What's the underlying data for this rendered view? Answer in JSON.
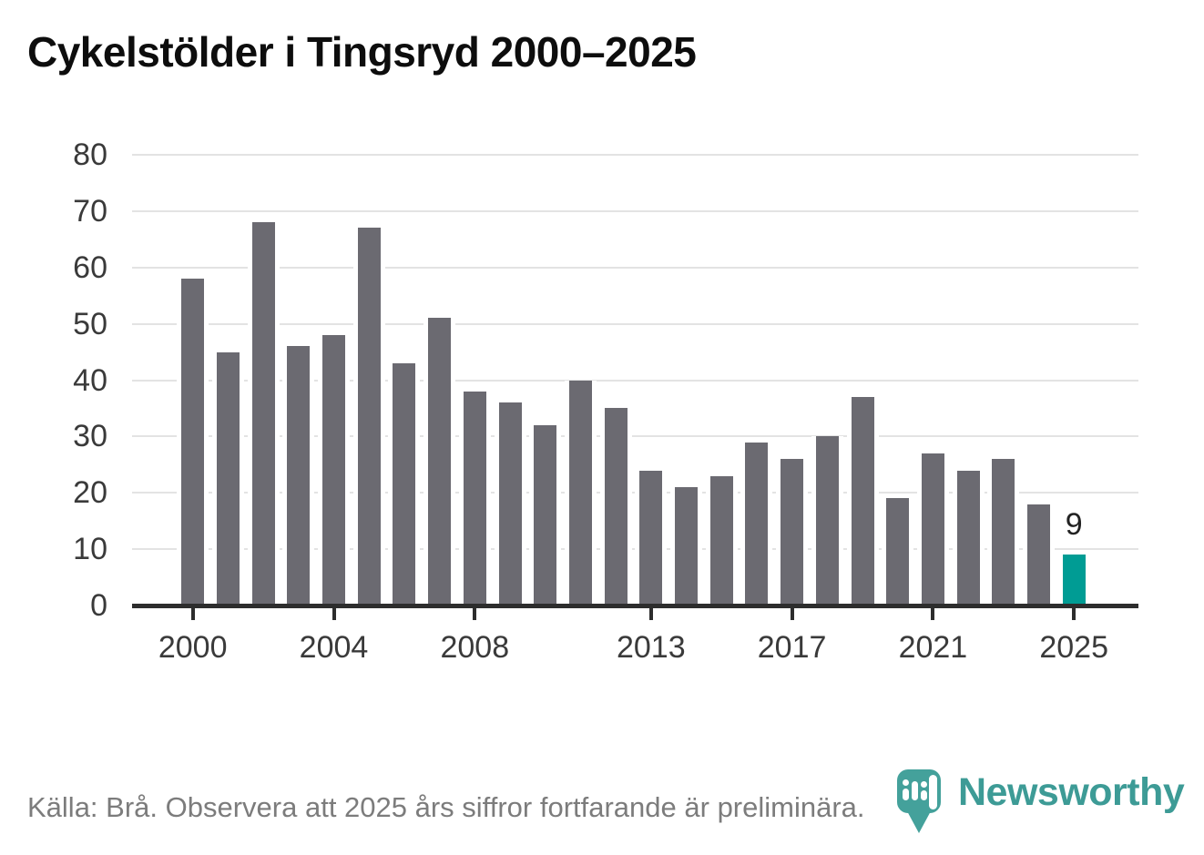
{
  "title": "Cykelstölder i Tingsryd 2000–2025",
  "chart_data": {
    "type": "bar",
    "x": [
      2000,
      2001,
      2002,
      2003,
      2004,
      2005,
      2006,
      2007,
      2008,
      2009,
      2010,
      2011,
      2012,
      2013,
      2014,
      2015,
      2016,
      2017,
      2018,
      2019,
      2020,
      2021,
      2022,
      2023,
      2024,
      2025
    ],
    "values": [
      58,
      45,
      68,
      46,
      48,
      67,
      43,
      51,
      38,
      36,
      32,
      40,
      35,
      24,
      21,
      23,
      29,
      26,
      30,
      37,
      19,
      27,
      24,
      26,
      18,
      9
    ],
    "title": "Cykelstölder i Tingsryd 2000–2025",
    "xlabel": "",
    "ylabel": "",
    "ylim": [
      0,
      80
    ],
    "yticks": [
      0,
      10,
      20,
      30,
      40,
      50,
      60,
      70,
      80
    ],
    "xticks": [
      2000,
      2004,
      2008,
      2013,
      2017,
      2021,
      2025
    ],
    "grid": true,
    "legend": false,
    "bar_color": "#6B6A71",
    "axis_color": "#2D2D2D",
    "grid_color": "#E3E3E3",
    "highlight": {
      "x": 2025,
      "color": "#009C94",
      "label": "9"
    }
  },
  "footer": {
    "source_note": "Källa: Brå. Observera att 2025 års siffror fortfarande är preliminära."
  },
  "branding": {
    "name": "Newsworthy",
    "color": "#3D9B96",
    "icon_color": "#44A19B",
    "icon": "newsworthy-pin-barchart-icon"
  }
}
